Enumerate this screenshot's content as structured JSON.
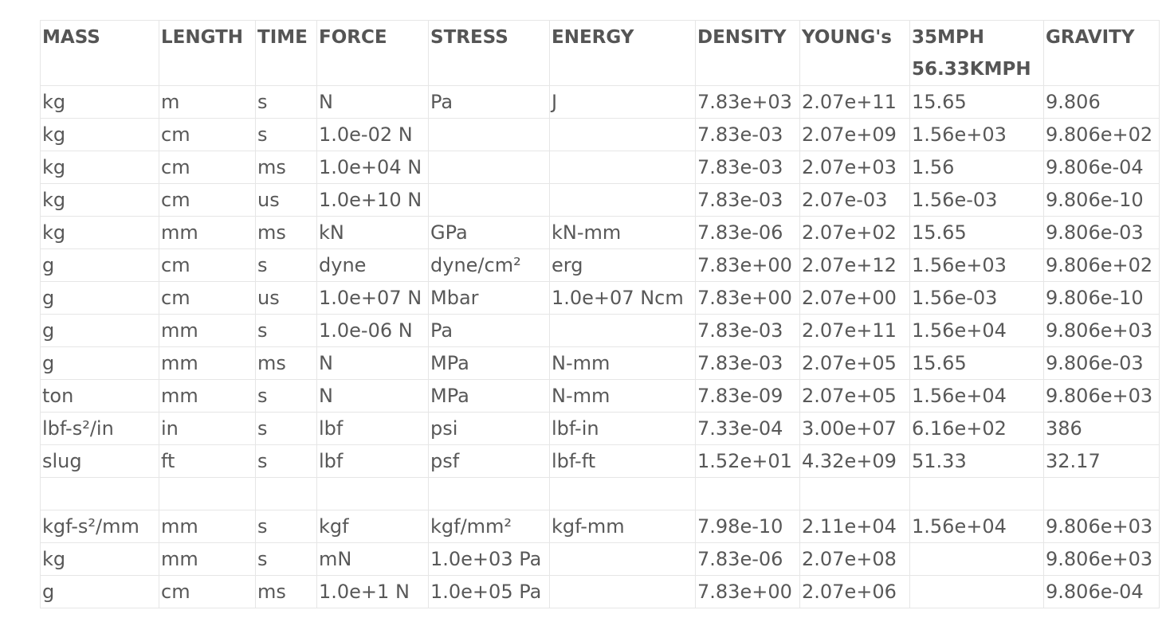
{
  "table": {
    "headers": [
      {
        "lines": [
          "MASS"
        ]
      },
      {
        "lines": [
          "LENGTH"
        ]
      },
      {
        "lines": [
          "TIME"
        ]
      },
      {
        "lines": [
          "FORCE"
        ]
      },
      {
        "lines": [
          "STRESS"
        ]
      },
      {
        "lines": [
          "ENERGY"
        ]
      },
      {
        "lines": [
          "DENSITY"
        ]
      },
      {
        "lines": [
          "YOUNG's"
        ]
      },
      {
        "lines": [
          "35MPH",
          "56.33KMPH"
        ]
      },
      {
        "lines": [
          "GRAVITY"
        ]
      }
    ],
    "rows": [
      [
        "kg",
        "m",
        "s",
        "N",
        "Pa",
        "J",
        "7.83e+03",
        "2.07e+11",
        "15.65",
        "9.806"
      ],
      [
        "kg",
        "cm",
        "s",
        "1.0e-02 N",
        "",
        "",
        "7.83e-03",
        "2.07e+09",
        "1.56e+03",
        "9.806e+02"
      ],
      [
        "kg",
        "cm",
        "ms",
        "1.0e+04 N",
        "",
        "",
        "7.83e-03",
        "2.07e+03",
        "1.56",
        "9.806e-04"
      ],
      [
        "kg",
        "cm",
        "us",
        "1.0e+10 N",
        "",
        "",
        "7.83e-03",
        "2.07e-03",
        "1.56e-03",
        "9.806e-10"
      ],
      [
        "kg",
        "mm",
        "ms",
        "kN",
        "GPa",
        "kN-mm",
        "7.83e-06",
        "2.07e+02",
        "15.65",
        "9.806e-03"
      ],
      [
        "g",
        "cm",
        "s",
        "dyne",
        "dyne/cm²",
        "erg",
        "7.83e+00",
        "2.07e+12",
        "1.56e+03",
        "9.806e+02"
      ],
      [
        "g",
        "cm",
        "us",
        "1.0e+07 N",
        "Mbar",
        "1.0e+07 Ncm",
        "7.83e+00",
        "2.07e+00",
        "1.56e-03",
        "9.806e-10"
      ],
      [
        "g",
        "mm",
        "s",
        "1.0e-06 N",
        "Pa",
        "",
        "7.83e-03",
        "2.07e+11",
        "1.56e+04",
        "9.806e+03"
      ],
      [
        "g",
        "mm",
        "ms",
        "N",
        "MPa",
        "N-mm",
        "7.83e-03",
        "2.07e+05",
        "15.65",
        "9.806e-03"
      ],
      [
        "ton",
        "mm",
        "s",
        "N",
        "MPa",
        "N-mm",
        "7.83e-09",
        "2.07e+05",
        "1.56e+04",
        "9.806e+03"
      ],
      [
        "lbf-s²/in",
        "in",
        "s",
        "lbf",
        "psi",
        "lbf-in",
        "7.33e-04",
        "3.00e+07",
        "6.16e+02",
        "386"
      ],
      [
        "slug",
        "ft",
        "s",
        "lbf",
        "psf",
        "lbf-ft",
        "1.52e+01",
        "4.32e+09",
        "51.33",
        "32.17"
      ],
      [
        "",
        "",
        "",
        "",
        "",
        "",
        "",
        "",
        "",
        ""
      ],
      [
        "kgf-s²/mm",
        "mm",
        "s",
        "kgf",
        "kgf/mm²",
        "kgf-mm",
        "7.98e-10",
        "2.11e+04",
        "1.56e+04",
        "9.806e+03"
      ],
      [
        "kg",
        "mm",
        "s",
        "mN",
        "1.0e+03 Pa",
        "",
        "7.83e-06",
        "2.07e+08",
        "",
        "9.806e+03"
      ],
      [
        "g",
        "cm",
        "ms",
        "1.0e+1 N",
        "1.0e+05 Pa",
        "",
        "7.83e+00",
        "2.07e+06",
        "",
        "9.806e-04"
      ]
    ]
  }
}
